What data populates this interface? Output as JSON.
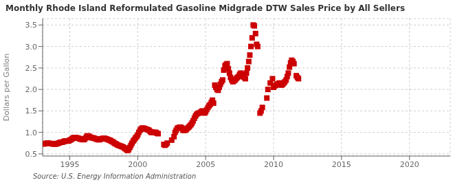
{
  "chart_data": {
    "type": "scatter",
    "title": "Monthly Rhode Island Reformulated Gasoline Midgrade DTW Sales Price by All Sellers",
    "ylabel": "Dollars per Gallon",
    "annotations": [
      "Source: U.S. Energy Information Administration"
    ],
    "color": "#cc0000",
    "marker": "square",
    "grid": true,
    "xlim": [
      1993.0,
      2023.0
    ],
    "ylim": [
      0.45,
      3.65
    ],
    "xticks": [
      1995,
      2000,
      2005,
      2010,
      2015,
      2020
    ],
    "yticks": [
      0.5,
      {
        "value": 1.0,
        "label": "1.0"
      },
      1.5,
      {
        "value": 2.0,
        "label": "2.0"
      },
      2.5,
      {
        "value": 3.0,
        "label": "3.0"
      },
      3.5
    ],
    "x": [
      1993.08,
      1993.17,
      1993.25,
      1993.33,
      1993.42,
      1993.5,
      1993.58,
      1993.67,
      1993.75,
      1993.83,
      1993.92,
      1994.0,
      1994.08,
      1994.17,
      1994.25,
      1994.33,
      1994.42,
      1994.5,
      1994.58,
      1994.67,
      1994.75,
      1994.83,
      1994.92,
      1995.0,
      1995.08,
      1995.17,
      1995.25,
      1995.33,
      1995.42,
      1995.5,
      1995.58,
      1995.67,
      1995.75,
      1995.83,
      1995.92,
      1996.0,
      1996.08,
      1996.17,
      1996.25,
      1996.33,
      1996.42,
      1996.5,
      1996.58,
      1996.67,
      1996.75,
      1996.83,
      1996.92,
      1997.0,
      1997.08,
      1997.17,
      1997.25,
      1997.33,
      1997.42,
      1997.5,
      1997.58,
      1997.67,
      1997.75,
      1997.83,
      1997.92,
      1998.0,
      1998.08,
      1998.17,
      1998.25,
      1998.33,
      1998.42,
      1998.5,
      1998.58,
      1998.67,
      1998.75,
      1998.83,
      1998.92,
      1999.0,
      1999.08,
      1999.17,
      1999.25,
      1999.33,
      1999.42,
      1999.5,
      1999.58,
      1999.67,
      1999.75,
      1999.83,
      1999.92,
      2000.0,
      2000.08,
      2000.17,
      2000.25,
      2000.33,
      2000.42,
      2000.5,
      2000.58,
      2000.67,
      2000.75,
      2000.83,
      2000.92,
      2001.0,
      2001.08,
      2001.17,
      2001.25,
      2001.33,
      2001.42,
      2001.5,
      2001.92,
      2002.0,
      2002.08,
      2002.17,
      2002.5,
      2002.67,
      2002.75,
      2002.83,
      2002.92,
      2003.0,
      2003.08,
      2003.17,
      2003.25,
      2003.33,
      2003.42,
      2003.5,
      2003.58,
      2003.67,
      2003.75,
      2003.83,
      2003.92,
      2004.0,
      2004.08,
      2004.17,
      2004.25,
      2004.33,
      2004.42,
      2004.5,
      2004.58,
      2004.67,
      2004.75,
      2004.83,
      2004.92,
      2005.0,
      2005.08,
      2005.17,
      2005.25,
      2005.33,
      2005.42,
      2005.5,
      2005.58,
      2005.67,
      2005.75,
      2005.83,
      2005.92,
      2006.0,
      2006.08,
      2006.17,
      2006.25,
      2006.33,
      2006.42,
      2006.5,
      2006.58,
      2006.67,
      2006.75,
      2006.83,
      2006.92,
      2007.0,
      2007.08,
      2007.17,
      2007.25,
      2007.33,
      2007.42,
      2007.5,
      2007.58,
      2007.67,
      2007.75,
      2007.83,
      2007.92,
      2008.0,
      2008.08,
      2008.17,
      2008.25,
      2008.33,
      2008.42,
      2008.5,
      2008.58,
      2008.67,
      2008.75,
      2008.83,
      2009.0,
      2009.08,
      2009.17,
      2009.5,
      2009.58,
      2009.75,
      2009.92,
      2010.0,
      2010.08,
      2010.17,
      2010.25,
      2010.33,
      2010.42,
      2010.5,
      2010.58,
      2010.67,
      2010.75,
      2010.83,
      2010.92,
      2011.0,
      2011.08,
      2011.17,
      2011.25,
      2011.33,
      2011.42,
      2011.5,
      2011.67,
      2011.75,
      2011.83
    ],
    "values": [
      0.73,
      0.74,
      0.74,
      0.75,
      0.75,
      0.74,
      0.74,
      0.74,
      0.73,
      0.73,
      0.73,
      0.73,
      0.74,
      0.75,
      0.76,
      0.77,
      0.77,
      0.78,
      0.79,
      0.8,
      0.8,
      0.8,
      0.8,
      0.82,
      0.83,
      0.85,
      0.87,
      0.88,
      0.88,
      0.87,
      0.87,
      0.86,
      0.85,
      0.84,
      0.84,
      0.83,
      0.84,
      0.87,
      0.91,
      0.92,
      0.91,
      0.89,
      0.88,
      0.87,
      0.87,
      0.86,
      0.85,
      0.84,
      0.83,
      0.83,
      0.84,
      0.85,
      0.86,
      0.86,
      0.86,
      0.85,
      0.84,
      0.83,
      0.82,
      0.81,
      0.79,
      0.78,
      0.76,
      0.74,
      0.73,
      0.71,
      0.7,
      0.69,
      0.68,
      0.67,
      0.66,
      0.64,
      0.62,
      0.6,
      0.58,
      0.6,
      0.65,
      0.7,
      0.75,
      0.8,
      0.83,
      0.87,
      0.9,
      0.94,
      1.0,
      1.05,
      1.08,
      1.1,
      1.1,
      1.09,
      1.08,
      1.07,
      1.06,
      1.05,
      1.02,
      1.0,
      1.0,
      1.0,
      1.0,
      1.0,
      0.98,
      0.97,
      0.72,
      0.7,
      0.72,
      0.75,
      0.82,
      0.9,
      1.0,
      1.05,
      1.1,
      1.1,
      1.12,
      1.12,
      1.1,
      1.05,
      1.05,
      1.05,
      1.07,
      1.1,
      1.12,
      1.15,
      1.18,
      1.22,
      1.27,
      1.33,
      1.38,
      1.42,
      1.44,
      1.45,
      1.46,
      1.48,
      1.5,
      1.48,
      1.45,
      1.48,
      1.53,
      1.58,
      1.62,
      1.65,
      1.7,
      1.75,
      1.68,
      2.1,
      2.05,
      2.0,
      1.98,
      2.05,
      2.12,
      2.18,
      2.22,
      2.45,
      2.55,
      2.58,
      2.6,
      2.48,
      2.38,
      2.28,
      2.22,
      2.18,
      2.2,
      2.22,
      2.25,
      2.28,
      2.3,
      2.35,
      2.38,
      2.35,
      2.32,
      2.28,
      2.25,
      2.38,
      2.5,
      2.65,
      2.8,
      3.0,
      3.2,
      3.5,
      3.48,
      3.3,
      3.05,
      3.0,
      1.45,
      1.5,
      1.58,
      1.8,
      2.0,
      2.15,
      2.25,
      2.05,
      2.08,
      2.1,
      2.12,
      2.13,
      2.15,
      2.12,
      2.1,
      2.12,
      2.15,
      2.18,
      2.22,
      2.3,
      2.38,
      2.52,
      2.62,
      2.68,
      2.65,
      2.6,
      2.32,
      2.28,
      2.25
    ]
  }
}
